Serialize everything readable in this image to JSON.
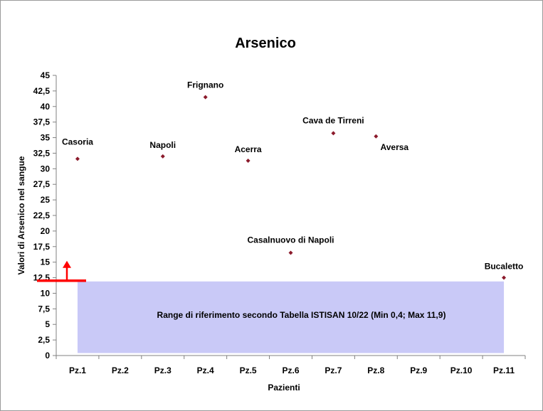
{
  "chart_data": {
    "type": "scatter",
    "title": "Arsenico",
    "xlabel": "Pazienti",
    "ylabel": "Valori di Arsenico nel sangue",
    "categories": [
      "Pz.1",
      "Pz.2",
      "Pz.3",
      "Pz.4",
      "Pz.5",
      "Pz.6",
      "Pz.7",
      "Pz.8",
      "Pz.9",
      "Pz.10",
      "Pz.11"
    ],
    "y_ticks": [
      "0",
      "2,5",
      "5",
      "7,5",
      "10",
      "12,5",
      "15",
      "17,5",
      "20",
      "22,5",
      "25",
      "27,5",
      "30",
      "32,5",
      "35",
      "37,5",
      "40",
      "42,5",
      "45"
    ],
    "ylim": [
      0,
      45
    ],
    "grid": false,
    "points": [
      {
        "x": "Pz.1",
        "y": 31.6,
        "label": "Casoria"
      },
      {
        "x": "Pz.3",
        "y": 32.0,
        "label": "Napoli"
      },
      {
        "x": "Pz.4",
        "y": 41.5,
        "label": "Frignano"
      },
      {
        "x": "Pz.5",
        "y": 31.3,
        "label": "Acerra"
      },
      {
        "x": "Pz.6",
        "y": 16.5,
        "label": "Casalnuovo di Napoli"
      },
      {
        "x": "Pz.7",
        "y": 35.7,
        "label": "Cava de Tirreni"
      },
      {
        "x": "Pz.8",
        "y": 35.2,
        "label": "Aversa"
      },
      {
        "x": "Pz.11",
        "y": 12.5,
        "label": "Bucaletto"
      }
    ],
    "reference_range": {
      "min": 0.4,
      "max": 11.9,
      "label": "Range di riferimento secondo Tabella ISTISAN 10/22 (Min 0,4; Max 11,9)"
    },
    "colors": {
      "marker": "#8b1a2b",
      "range_fill": "#c9c9f7",
      "threshold": "#ff0000"
    }
  }
}
